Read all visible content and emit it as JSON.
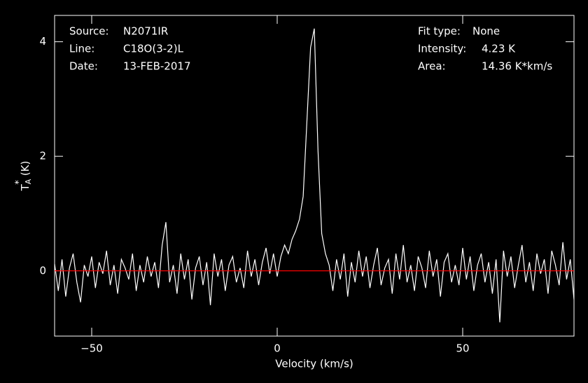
{
  "chart_data": {
    "type": "line",
    "info_left": [
      {
        "key": "Source:",
        "val": "N2071IR"
      },
      {
        "key": "Line:",
        "val": "C18O(3-2)L"
      },
      {
        "key": "Date:",
        "val": "13-FEB-2017"
      }
    ],
    "info_right": [
      {
        "key": "Fit type:",
        "val": "None"
      },
      {
        "key": "Intensity:",
        "val": "4.23 K"
      },
      {
        "key": "Area:",
        "val": "14.36 K*km/s"
      }
    ],
    "xlabel": "Velocity (km/s)",
    "ylabel": {
      "main": "T",
      "sub": "A",
      "sup": "*",
      "unit": "(K)"
    },
    "xlim": [
      -60,
      80
    ],
    "ylim": [
      -1.14,
      4.46
    ],
    "xticks": [
      {
        "value": -50,
        "label": "−50"
      },
      0,
      50
    ],
    "yticks": [
      0,
      2,
      4
    ],
    "zero_line": {
      "value": 0,
      "color": "#ff0000"
    },
    "x": [
      -60,
      -59,
      -58,
      -57,
      -56,
      -55,
      -54,
      -53,
      -52,
      -51,
      -50,
      -49,
      -48,
      -47,
      -46,
      -45,
      -44,
      -43,
      -42,
      -41,
      -40,
      -39,
      -38,
      -37,
      -36,
      -35,
      -34,
      -33,
      -32,
      -31,
      -30,
      -29,
      -28,
      -27,
      -26,
      -25,
      -24,
      -23,
      -22,
      -21,
      -20,
      -19,
      -18,
      -17,
      -16,
      -15,
      -14,
      -13,
      -12,
      -11,
      -10,
      -9,
      -8,
      -7,
      -6,
      -5,
      -4,
      -3,
      -2,
      -1,
      0,
      1,
      2,
      3,
      4,
      5,
      6,
      7,
      8,
      9,
      10,
      11,
      12,
      13,
      14,
      15,
      16,
      17,
      18,
      19,
      20,
      21,
      22,
      23,
      24,
      25,
      26,
      27,
      28,
      29,
      30,
      31,
      32,
      33,
      34,
      35,
      36,
      37,
      38,
      39,
      40,
      41,
      42,
      43,
      44,
      45,
      46,
      47,
      48,
      49,
      50,
      51,
      52,
      53,
      54,
      55,
      56,
      57,
      58,
      59,
      60,
      61,
      62,
      63,
      64,
      65,
      66,
      67,
      68,
      69,
      70,
      71,
      72,
      73,
      74,
      75,
      76,
      77,
      78,
      79,
      80
    ],
    "series": [
      {
        "color": "#ffffff",
        "values": [
          0.12,
          -0.35,
          0.2,
          -0.45,
          0.05,
          0.3,
          -0.2,
          -0.55,
          0.1,
          -0.1,
          0.25,
          -0.3,
          0.15,
          -0.05,
          0.35,
          -0.25,
          0.1,
          -0.4,
          0.2,
          0.05,
          -0.15,
          0.3,
          -0.35,
          0.1,
          -0.2,
          0.25,
          -0.1,
          0.15,
          -0.3,
          0.45,
          0.85,
          -0.2,
          0.1,
          -0.4,
          0.3,
          -0.15,
          0.2,
          -0.5,
          0.05,
          0.25,
          -0.25,
          0.15,
          -0.6,
          0.3,
          -0.1,
          0.2,
          -0.35,
          0.1,
          0.25,
          -0.2,
          0.05,
          -0.3,
          0.35,
          -0.1,
          0.2,
          -0.25,
          0.15,
          0.4,
          -0.05,
          0.3,
          -0.1,
          0.25,
          0.45,
          0.3,
          0.55,
          0.7,
          0.9,
          1.3,
          2.6,
          3.9,
          4.23,
          2.1,
          0.65,
          0.3,
          0.1,
          -0.35,
          0.2,
          -0.15,
          0.3,
          -0.45,
          0.15,
          -0.2,
          0.35,
          -0.1,
          0.25,
          -0.3,
          0.1,
          0.4,
          -0.25,
          0.05,
          0.2,
          -0.4,
          0.3,
          -0.15,
          0.45,
          -0.2,
          0.1,
          -0.35,
          0.25,
          0.05,
          -0.3,
          0.35,
          -0.1,
          0.2,
          -0.45,
          0.15,
          0.3,
          -0.2,
          0.1,
          -0.25,
          0.4,
          -0.15,
          0.25,
          -0.35,
          0.1,
          0.3,
          -0.2,
          0.15,
          -0.4,
          0.2,
          -0.9,
          0.35,
          -0.1,
          0.25,
          -0.3,
          0.1,
          0.45,
          -0.2,
          0.15,
          -0.35,
          0.3,
          -0.05,
          0.2,
          -0.4,
          0.35,
          0.1,
          -0.25,
          0.5,
          -0.15,
          0.2,
          -0.5
        ]
      }
    ]
  }
}
